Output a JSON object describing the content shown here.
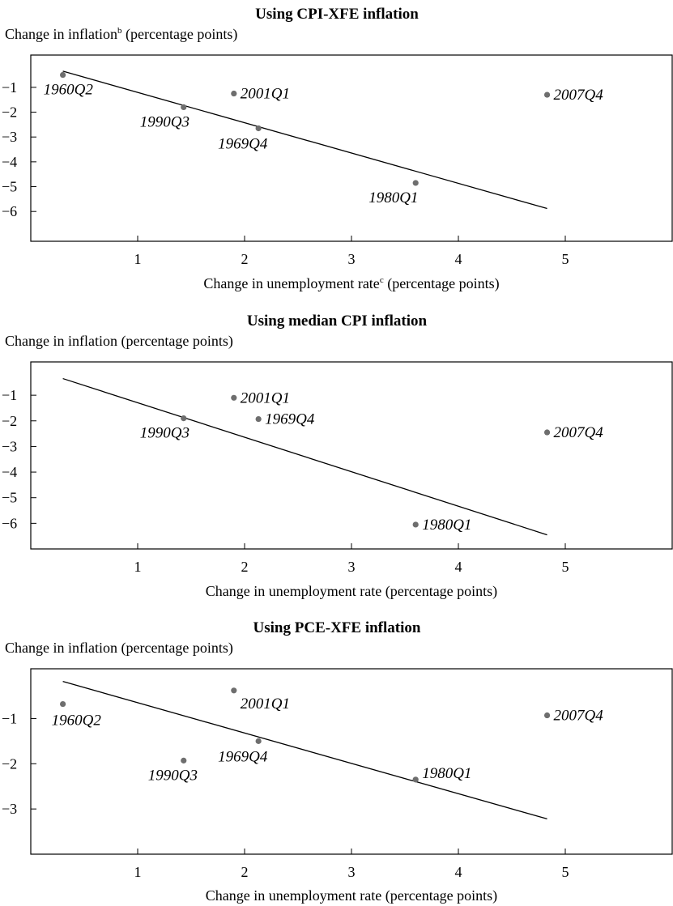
{
  "chart_data": [
    {
      "type": "scatter",
      "title": "Using CPI-XFE inflation",
      "ylabel": "Change in inflation",
      "ylabel_sup": "b",
      "ylabel_unit": "(percentage points)",
      "xlabel": "Change in unemployment rate",
      "xlabel_sup": "c",
      "xlabel_unit": "(percentage points)",
      "xlim": [
        0,
        6
      ],
      "ylim": [
        -7.2,
        0.3
      ],
      "xticks": [
        "1",
        "2",
        "3",
        "4",
        "5"
      ],
      "yticks": [
        "-1",
        "-2",
        "-3",
        "-4",
        "-5",
        "-6"
      ],
      "points": [
        {
          "label": "1960Q2",
          "x": 0.3,
          "y": -0.5
        },
        {
          "label": "1990Q3",
          "x": 1.43,
          "y": -1.8
        },
        {
          "label": "2001Q1",
          "x": 1.9,
          "y": -1.25
        },
        {
          "label": "1969Q4",
          "x": 2.13,
          "y": -2.65
        },
        {
          "label": "1980Q1",
          "x": 3.6,
          "y": -4.85
        },
        {
          "label": "2007Q4",
          "x": 4.83,
          "y": -1.3
        }
      ],
      "fit_line": {
        "x": [
          0.3,
          4.83
        ],
        "y": [
          -0.35,
          -5.88
        ]
      }
    },
    {
      "type": "scatter",
      "title": "Using median CPI inflation",
      "ylabel": "Change in inflation",
      "ylabel_sup": "",
      "ylabel_unit": "(percentage points)",
      "xlabel": "Change in unemployment rate",
      "xlabel_sup": "",
      "xlabel_unit": "(percentage points)",
      "xlim": [
        0,
        6
      ],
      "ylim": [
        -7.0,
        0.3
      ],
      "xticks": [
        "1",
        "2",
        "3",
        "4",
        "5"
      ],
      "yticks": [
        "-1",
        "-2",
        "-3",
        "-4",
        "-5",
        "-6"
      ],
      "points": [
        {
          "label": "1990Q3",
          "x": 1.43,
          "y": -1.9
        },
        {
          "label": "2001Q1",
          "x": 1.9,
          "y": -1.1
        },
        {
          "label": "1969Q4",
          "x": 2.13,
          "y": -1.93
        },
        {
          "label": "1980Q1",
          "x": 3.6,
          "y": -6.05
        },
        {
          "label": "2007Q4",
          "x": 4.83,
          "y": -2.45
        }
      ],
      "fit_line": {
        "x": [
          0.3,
          4.83
        ],
        "y": [
          -0.35,
          -6.45
        ]
      }
    },
    {
      "type": "scatter",
      "title": "Using PCE-XFE inflation",
      "ylabel": "Change in inflation",
      "ylabel_sup": "",
      "ylabel_unit": "(percentage points)",
      "xlabel": "Change in unemployment rate",
      "xlabel_sup": "",
      "xlabel_unit": "(percentage points)",
      "xlim": [
        0,
        6
      ],
      "ylim": [
        -4.0,
        0.1
      ],
      "xticks": [
        "1",
        "2",
        "3",
        "4",
        "5"
      ],
      "yticks": [
        "-1",
        "-2",
        "-3"
      ],
      "points": [
        {
          "label": "1960Q2",
          "x": 0.3,
          "y": -0.68
        },
        {
          "label": "1990Q3",
          "x": 1.43,
          "y": -1.93
        },
        {
          "label": "2001Q1",
          "x": 1.9,
          "y": -0.38
        },
        {
          "label": "1969Q4",
          "x": 2.13,
          "y": -1.5
        },
        {
          "label": "1980Q1",
          "x": 3.6,
          "y": -2.35
        },
        {
          "label": "2007Q4",
          "x": 4.83,
          "y": -0.93
        }
      ],
      "fit_line": {
        "x": [
          0.3,
          4.83
        ],
        "y": [
          -0.18,
          -3.22
        ]
      }
    }
  ]
}
